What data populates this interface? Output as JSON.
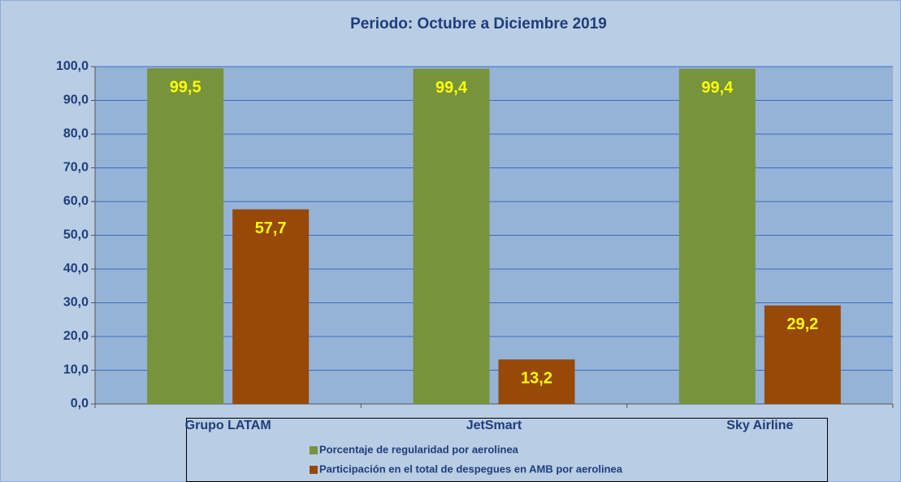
{
  "chart_data": {
    "type": "bar",
    "title": "Periodo: Octubre  a  Diciembre   2019",
    "categories": [
      "Grupo LATAM",
      "JetSmart",
      "Sky Airline"
    ],
    "series": [
      {
        "name": "Porcentaje de regularidad por aerolinea",
        "color": "#77933c",
        "values": [
          99.5,
          99.4,
          99.4
        ],
        "value_labels": [
          "99,5",
          "99,4",
          "99,4"
        ]
      },
      {
        "name": "Participación en el total de despegues en AMB por aerolinea",
        "color": "#984807",
        "values": [
          57.7,
          13.2,
          29.2
        ],
        "value_labels": [
          "57,7",
          "13,2",
          "29,2"
        ]
      }
    ],
    "ylim": [
      0,
      100
    ],
    "yticks": [
      {
        "value": 0,
        "label": "0,0"
      },
      {
        "value": 10,
        "label": "10,0"
      },
      {
        "value": 20,
        "label": "20,0"
      },
      {
        "value": 30,
        "label": "30,0"
      },
      {
        "value": 40,
        "label": "40,0"
      },
      {
        "value": 50,
        "label": "50,0"
      },
      {
        "value": 60,
        "label": "60,0"
      },
      {
        "value": 70,
        "label": "70,0"
      },
      {
        "value": 80,
        "label": "80,0"
      },
      {
        "value": 90,
        "label": "90,0"
      },
      {
        "value": 100,
        "label": "100,0"
      }
    ],
    "grid": true,
    "legend": "bottom"
  }
}
